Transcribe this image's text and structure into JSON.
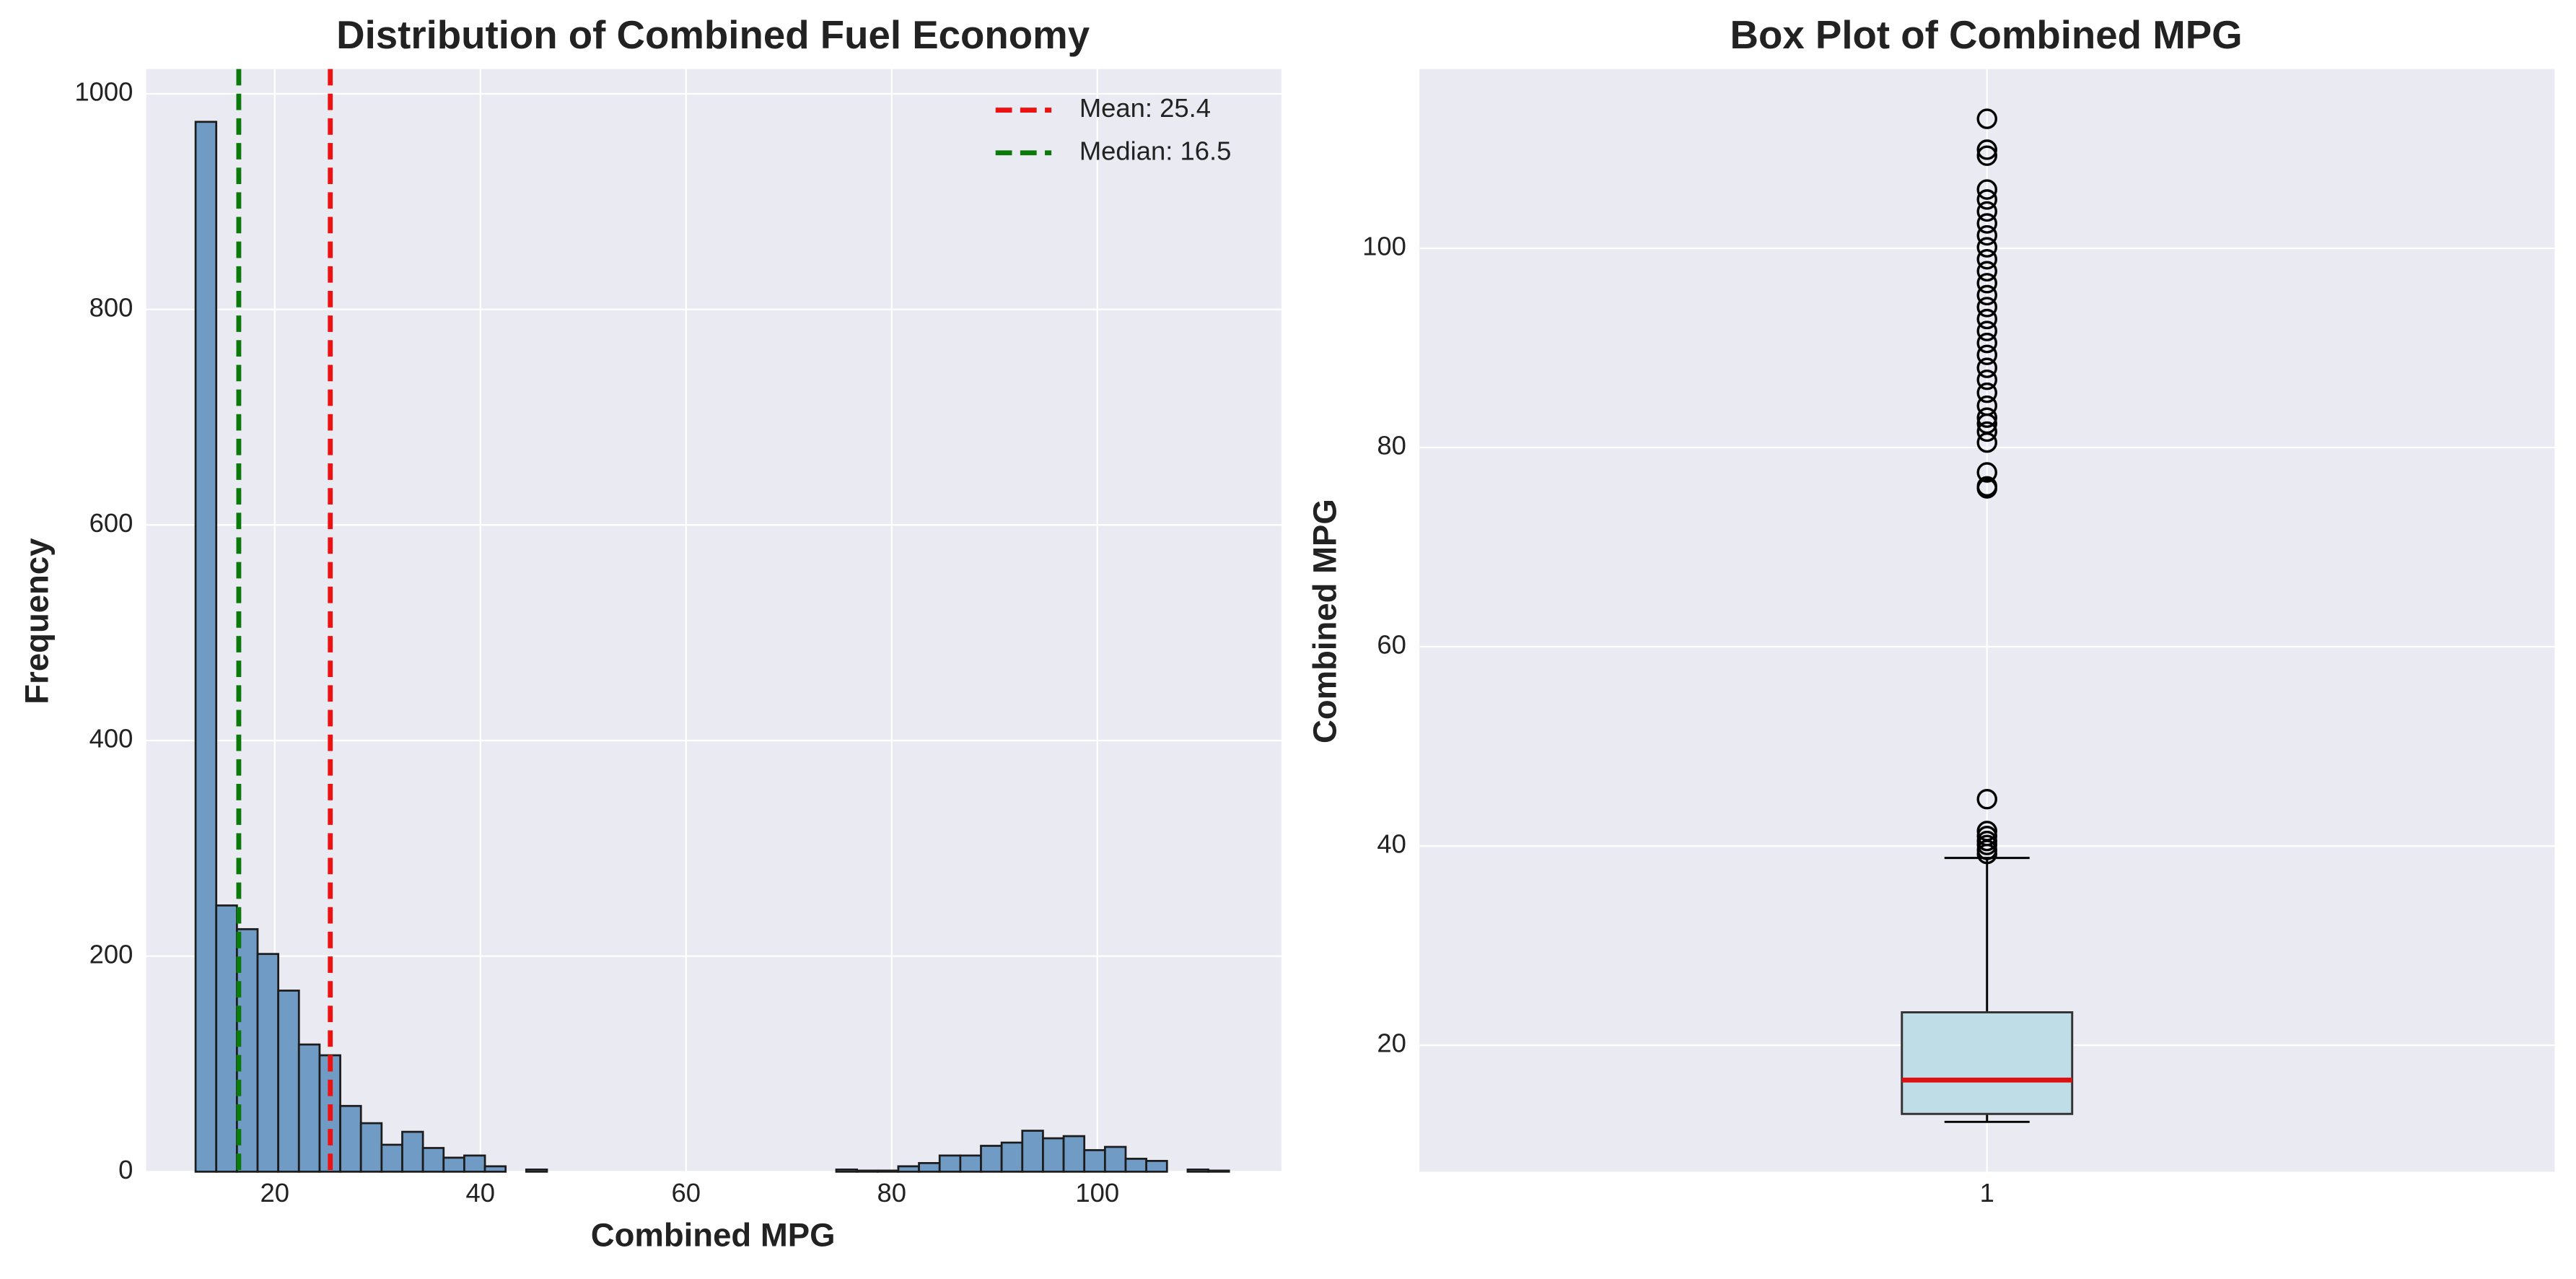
{
  "chart_data": [
    {
      "type": "histogram",
      "title": "Distribution of Combined Fuel Economy",
      "xlabel": "Combined MPG",
      "ylabel": "Frequency",
      "bins": [
        12.3,
        14.31,
        16.32,
        18.33,
        20.34,
        22.35,
        24.36,
        26.37,
        28.38,
        30.39,
        32.4,
        34.41,
        36.42,
        38.43,
        40.44,
        42.45,
        44.46,
        46.47,
        48.48,
        50.49,
        52.5,
        54.51,
        56.52,
        58.53,
        60.54,
        62.55,
        64.56,
        66.57,
        68.58,
        70.59,
        72.6,
        74.61,
        76.62,
        78.63,
        80.64,
        82.65,
        84.66,
        86.67,
        88.68,
        90.69,
        92.7,
        94.71,
        96.72,
        98.73,
        100.74,
        102.75,
        104.76,
        106.77,
        108.78,
        110.79,
        112.8
      ],
      "counts": [
        974,
        247,
        225,
        202,
        168,
        118,
        108,
        61,
        45,
        25,
        37,
        22,
        13,
        15,
        5,
        0,
        2,
        0,
        0,
        0,
        0,
        0,
        0,
        0,
        0,
        0,
        0,
        0,
        0,
        0,
        0,
        2,
        1,
        1,
        5,
        8,
        15,
        15,
        24,
        27,
        38,
        31,
        33,
        20,
        23,
        12,
        10,
        0,
        2,
        1
      ],
      "color": "#709bc4",
      "edgecolor": "#1c1c1c",
      "vlines": [
        {
          "label": "Mean: 25.4",
          "value": 25.4,
          "color": "#ee1111"
        },
        {
          "label": "Median: 16.5",
          "value": 16.5,
          "color": "#0b7a0b"
        }
      ],
      "xlim": [
        7.5,
        117.9
      ],
      "ylim": [
        0,
        1023
      ],
      "xticks": [
        20,
        40,
        60,
        80,
        100
      ],
      "yticks": [
        0,
        200,
        400,
        600,
        800,
        1000
      ],
      "grid": true,
      "legend": "upper right"
    },
    {
      "type": "box",
      "title": "Box Plot of Combined MPG",
      "ylabel": "Combined MPG",
      "categories": [
        "1"
      ],
      "whisker_low": 12.3,
      "q1": 13.1,
      "median": 16.5,
      "q3": 23.3,
      "whisker_high": 38.8,
      "outliers": [
        39.2,
        39.6,
        40.1,
        40.5,
        41.0,
        41.5,
        44.7,
        75.9,
        76.1,
        77.5,
        80.5,
        81.6,
        82.4,
        83.0,
        84.2,
        85.5,
        86.8,
        88.0,
        89.3,
        90.5,
        91.7,
        92.9,
        94.1,
        95.3,
        96.5,
        97.7,
        98.9,
        100.1,
        101.3,
        102.5,
        103.7,
        104.9,
        105.9,
        109.3,
        109.9,
        113.0
      ],
      "box_color": "#bfdde7",
      "median_color": "#dd1111",
      "ylim": [
        7.3,
        118
      ],
      "yticks": [
        20,
        40,
        60,
        80,
        100
      ],
      "xlim": [
        0.5,
        1.5
      ],
      "grid": true
    }
  ]
}
